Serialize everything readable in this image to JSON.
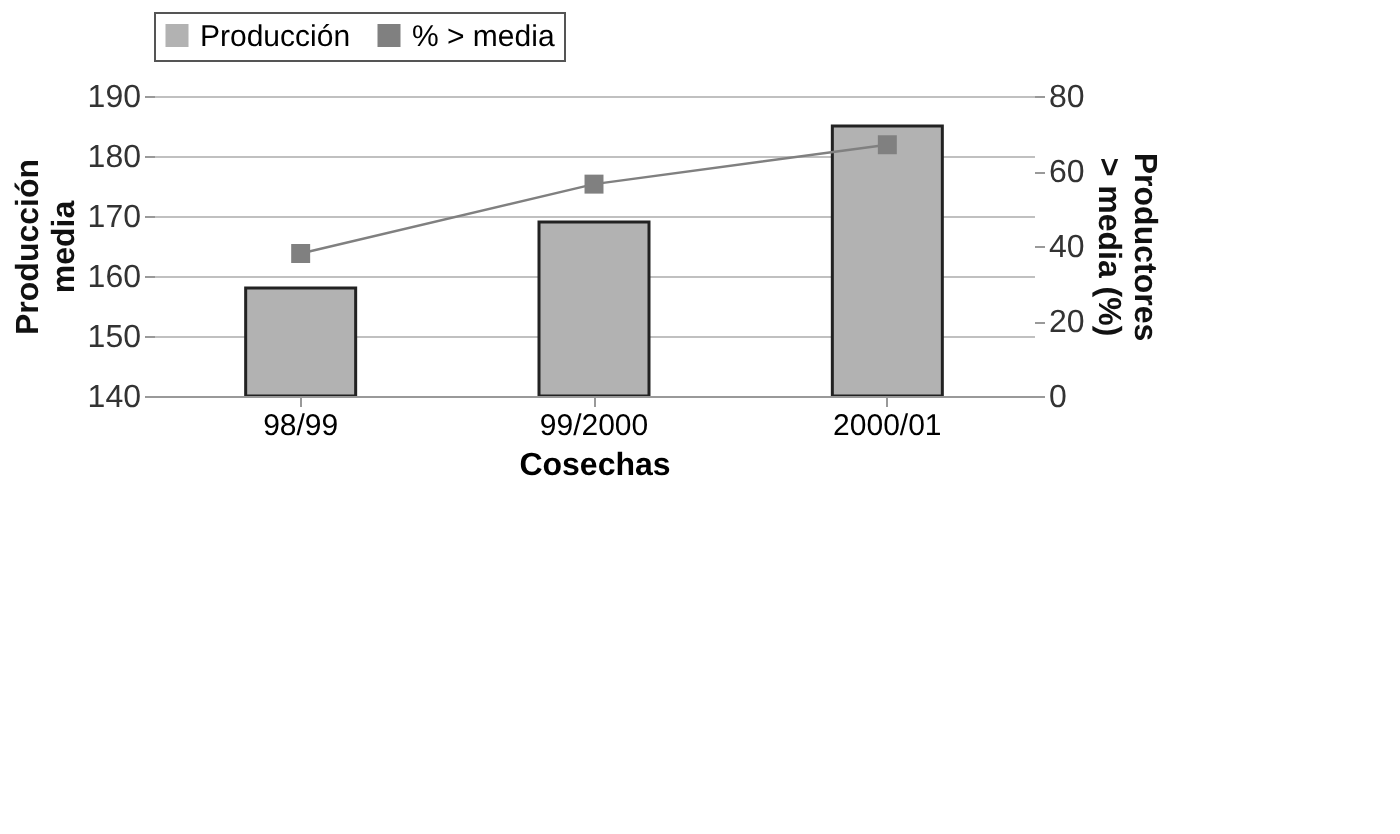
{
  "chart_data": {
    "type": "bar",
    "categories": [
      "98/99",
      "99/2000",
      "2000/01"
    ],
    "xlabel": "Cosechas",
    "ylabel": "Producción media",
    "y2label": "Productores > media (%)",
    "ylim": [
      140,
      190
    ],
    "yticks": [
      140,
      150,
      160,
      170,
      180,
      190
    ],
    "y2lim": [
      0,
      80
    ],
    "y2ticks": [
      0,
      20,
      40,
      60,
      80
    ],
    "grid": "y",
    "legend": "top",
    "marker": "square",
    "series": [
      {
        "name": "Producción",
        "color": "#b2b2b2",
        "values": [
          158,
          169,
          185
        ]
      },
      {
        "name": "% > media",
        "color": "#808080",
        "type": "line",
        "axis": "y2",
        "values": [
          38,
          56.5,
          67
        ]
      }
    ]
  }
}
